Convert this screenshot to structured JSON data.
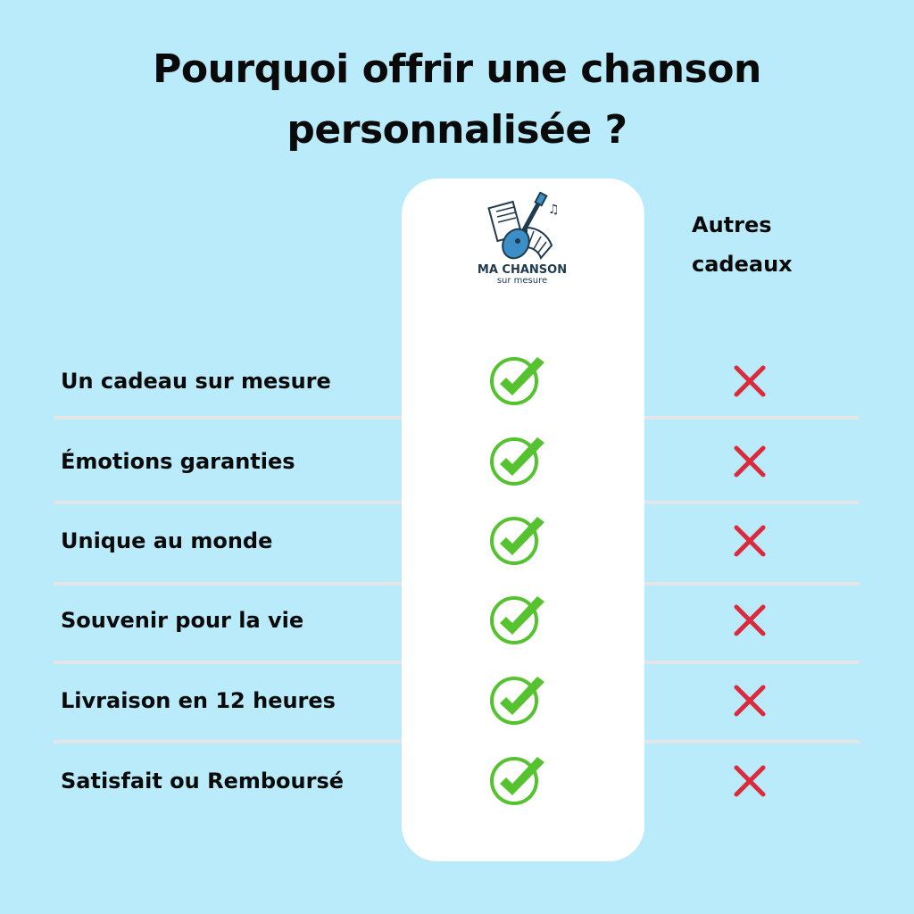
{
  "title_line1": "Pourquoi offrir une chanson",
  "title_line2": "personnalisée ?",
  "brand": {
    "name": "MA CHANSON",
    "tagline": "sur mesure"
  },
  "other_column": {
    "line1": "Autres",
    "line2": "cadeaux"
  },
  "colors": {
    "background": "#b9ebfb",
    "check": "#55c22f",
    "cross": "#dc2a3c"
  },
  "rows": [
    {
      "label": "Un cadeau sur mesure",
      "ours": "check-icon",
      "others": "cross-icon"
    },
    {
      "label": "Émotions garanties",
      "ours": "check-icon",
      "others": "cross-icon"
    },
    {
      "label": "Unique au monde",
      "ours": "check-icon",
      "others": "cross-icon"
    },
    {
      "label": "Souvenir pour la vie",
      "ours": "check-icon",
      "others": "cross-icon"
    },
    {
      "label": "Livraison en 12 heures",
      "ours": "check-icon",
      "others": "cross-icon"
    },
    {
      "label": " Satisfait ou Remboursé",
      "ours": "check-icon",
      "others": "cross-icon"
    }
  ]
}
